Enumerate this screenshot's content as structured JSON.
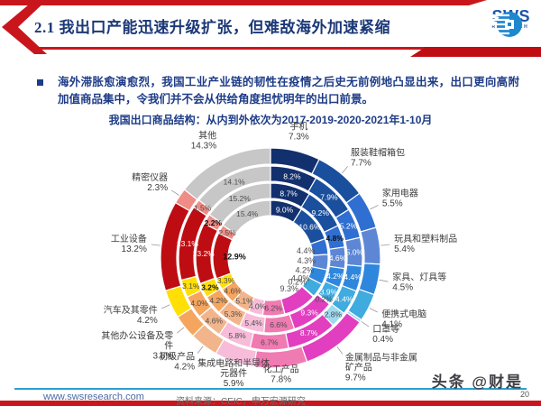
{
  "header": {
    "title": "2.1 我出口产能迅速升级扩张，但难敌海外加速紧缩",
    "logo_text": "SWS",
    "logo_subtext": "RESEARCH"
  },
  "body": {
    "bullet_text": "海外滞胀愈演愈烈，我国工业产业链的韧性在疫情之后史无前例地凸显出来，出口更向高附加值商品集中，令我们并不会从供给角度担忧明年的出口前景。"
  },
  "chart_data": {
    "type": "donut",
    "title": "我国出口商品结构：从内到外依次为2017-2019-2020-2021年1-10月",
    "unit": "%",
    "rings_inner_to_outer": [
      "2017",
      "2019",
      "2020",
      "2021年1-10月"
    ],
    "legend_position": "labels-around-ring",
    "categories": [
      {
        "name": "手机",
        "label_lines": [
          "手机"
        ],
        "pct_label": "7.3%",
        "color": "#13306e",
        "text": "light",
        "values": {
          "2017": 9.0,
          "2019": 8.7,
          "2020": 8.2,
          "2021": 7.3
        },
        "ring_labels": [
          {
            "year": "2020",
            "text": "8.2%",
            "style": "light",
            "pos": "ring"
          },
          {
            "year": "2019",
            "text": "8.7%",
            "style": "light",
            "pos": "ring"
          },
          {
            "year": "2017",
            "text": "9.0%",
            "style": "light",
            "pos": "ring"
          }
        ]
      },
      {
        "name": "服装鞋帽箱包",
        "label_lines": [
          "服装鞋帽箱包"
        ],
        "pct_label": "7.7%",
        "color": "#1a4f9d",
        "text": "light",
        "values": {
          "2017": 10.6,
          "2019": 9.2,
          "2020": 7.9,
          "2021": 7.7
        },
        "ring_labels": [
          {
            "year": "2020",
            "text": "7.9%",
            "style": "light",
            "pos": "ring"
          },
          {
            "year": "2019",
            "text": "9.2%",
            "style": "light",
            "pos": "ring"
          },
          {
            "year": "2017",
            "text": "10.6%",
            "style": "light",
            "pos": "ring"
          }
        ]
      },
      {
        "name": "家用电器",
        "label_lines": [
          "家用电器"
        ],
        "pct_label": "5.5%",
        "color": "#2f6fd2",
        "text": "light",
        "values": {
          "2017": 4.4,
          "2019": 4.8,
          "2020": 5.2,
          "2021": 5.5
        },
        "ring_labels": [
          {
            "year": "2020",
            "text": "5.2%",
            "style": "light",
            "pos": "ring"
          },
          {
            "year": "2019",
            "text": "4.8%",
            "style": "bold-dark",
            "pos": "ring"
          },
          {
            "year": "2017",
            "text": "4.4%",
            "style": "dark",
            "pos": "center"
          }
        ]
      },
      {
        "name": "玩具和塑料制品",
        "label_lines": [
          "玩具和塑料制品"
        ],
        "pct_label": "5.4%",
        "color": "#5d87d5",
        "text": "light",
        "values": {
          "2017": 4.3,
          "2019": 4.6,
          "2020": 5.0,
          "2021": 5.4
        },
        "ring_labels": [
          {
            "year": "2020",
            "text": "5.0%",
            "style": "light",
            "pos": "ring"
          },
          {
            "year": "2019",
            "text": "4.6%",
            "style": "light",
            "pos": "ring"
          },
          {
            "year": "2017",
            "text": "4.3%",
            "style": "dark",
            "pos": "center"
          }
        ]
      },
      {
        "name": "家具、灯具等",
        "label_lines": [
          "家具、灯具等"
        ],
        "pct_label": "4.5%",
        "color": "#2f87dd",
        "text": "light",
        "values": {
          "2017": 4.2,
          "2019": 4.2,
          "2020": 4.4,
          "2021": 4.5
        },
        "ring_labels": [
          {
            "year": "2020",
            "text": "4.4%",
            "style": "light",
            "pos": "ring"
          },
          {
            "year": "2019",
            "text": "4.2%",
            "style": "light",
            "pos": "ring"
          },
          {
            "year": "2017",
            "text": "4.2%",
            "style": "dark",
            "pos": "center"
          }
        ]
      },
      {
        "name": "便携式电脑",
        "label_lines": [
          "便携式电脑"
        ],
        "pct_label": "4.1%",
        "color": "#3fabdf",
        "text": "light",
        "values": {
          "2017": 4.0,
          "2019": 3.9,
          "2020": 4.4,
          "2021": 4.1
        },
        "ring_labels": [
          {
            "year": "2020",
            "text": "4.4%",
            "style": "light",
            "pos": "ring"
          },
          {
            "year": "2019",
            "text": "3.9%",
            "style": "light",
            "pos": "ring"
          },
          {
            "year": "2017",
            "text": "4.0%",
            "style": "dark",
            "pos": "center"
          }
        ]
      },
      {
        "name": "口罩等",
        "label_lines": [
          "口罩等"
        ],
        "pct_label": "0.4%",
        "color": "#9fd9ef",
        "text": "dark",
        "values": {
          "2017": 0.2,
          "2019": 0.2,
          "2020": 2.8,
          "2021": 0.4
        },
        "ring_labels": [
          {
            "year": "2020",
            "text": "2.8%",
            "style": "dark",
            "pos": "ring"
          },
          {
            "year": "2019",
            "text": "0.2%",
            "style": "dark",
            "pos": "ring"
          },
          {
            "year": "2017",
            "text": "0.2%",
            "style": "dark",
            "pos": "center"
          }
        ]
      },
      {
        "name": "金属制品与非金属矿产品",
        "label_lines": [
          "金属制品与非金属",
          "矿产品"
        ],
        "pct_label": "9.7%",
        "color": "#e13ec0",
        "text": "light",
        "values": {
          "2017": 9.3,
          "2019": 9.3,
          "2020": 8.7,
          "2021": 9.7
        },
        "ring_labels": [
          {
            "year": "2020",
            "text": "8.7%",
            "style": "light",
            "pos": "ring"
          },
          {
            "year": "2019",
            "text": "9.3%",
            "style": "light",
            "pos": "ring"
          },
          {
            "year": "2017",
            "text": "9.3%",
            "style": "dark",
            "pos": "center"
          }
        ]
      },
      {
        "name": "化工产品",
        "label_lines": [
          "化工产品"
        ],
        "pct_label": "7.8%",
        "color": "#f07ab2",
        "text": "dark",
        "values": {
          "2017": 6.2,
          "2019": 6.6,
          "2020": 6.7,
          "2021": 7.8
        },
        "ring_labels": [
          {
            "year": "2020",
            "text": "6.7%",
            "style": "dark",
            "pos": "ring"
          },
          {
            "year": "2019",
            "text": "6.6%",
            "style": "dark",
            "pos": "ring"
          },
          {
            "year": "2017",
            "text": "6.2%",
            "style": "dark",
            "pos": "ring"
          }
        ]
      },
      {
        "name": "集成电路和半导体元器件",
        "label_lines": [
          "集成电路和半导体",
          "元器件"
        ],
        "pct_label": "5.9%",
        "color": "#f6bcd9",
        "text": "dark",
        "values": {
          "2017": 4.0,
          "2019": 5.4,
          "2020": 5.8,
          "2021": 5.9
        },
        "ring_labels": [
          {
            "year": "2020",
            "text": "5.8%",
            "style": "dark",
            "pos": "ring"
          },
          {
            "year": "2019",
            "text": "5.4%",
            "style": "dark",
            "pos": "ring"
          },
          {
            "year": "2017",
            "text": "4.0%",
            "style": "dark",
            "pos": "ring"
          }
        ]
      },
      {
        "name": "初级产品",
        "label_lines": [
          "初级产品"
        ],
        "pct_label": "4.2%",
        "color": "#f2b58b",
        "text": "dark",
        "values": {
          "2017": 5.1,
          "2019": 5.3,
          "2020": 4.6,
          "2021": 4.2
        },
        "ring_labels": [
          {
            "year": "2020",
            "text": "4.6%",
            "style": "dark",
            "pos": "ring"
          },
          {
            "year": "2019",
            "text": "5.3%",
            "style": "dark",
            "pos": "ring"
          },
          {
            "year": "2017",
            "text": "5.1%",
            "style": "dark",
            "pos": "ring"
          }
        ]
      },
      {
        "name": "其他办公设备及零件",
        "label_lines": [
          "其他办公设备及零",
          "件"
        ],
        "pct_label": "3.5%",
        "color": "#f5a55e",
        "text": "dark",
        "values": {
          "2017": 4.6,
          "2019": 4.2,
          "2020": 4.0,
          "2021": 3.5
        },
        "ring_labels": [
          {
            "year": "2020",
            "text": "4.0%",
            "style": "dark",
            "pos": "ring"
          },
          {
            "year": "2019",
            "text": "4.2%",
            "style": "dark",
            "pos": "ring"
          },
          {
            "year": "2017",
            "text": "4.6%",
            "style": "dark",
            "pos": "ring"
          }
        ]
      },
      {
        "name": "汽车及其零件",
        "label_lines": [
          "汽车及其零件"
        ],
        "pct_label": "4.2%",
        "color": "#ffdf06",
        "text": "dark",
        "values": {
          "2017": 3.3,
          "2019": 3.2,
          "2020": 3.1,
          "2021": 4.2
        },
        "ring_labels": [
          {
            "year": "2020",
            "text": "3.1%",
            "style": "dark",
            "pos": "ring"
          },
          {
            "year": "2019",
            "text": "3.2%",
            "style": "bold-dark",
            "pos": "ring"
          },
          {
            "year": "2017",
            "text": "3.3%",
            "style": "dark",
            "pos": "ring"
          }
        ]
      },
      {
        "name": "工业设备",
        "label_lines": [
          "工业设备"
        ],
        "pct_label": "13.2%",
        "color": "#bd0d12",
        "text": "light",
        "values": {
          "2017": 12.9,
          "2019": 13.2,
          "2020": 13.1,
          "2021": 13.2
        },
        "ring_labels": [
          {
            "year": "2020",
            "text": "13.1%",
            "style": "light",
            "pos": "ring"
          },
          {
            "year": "2019",
            "text": "13.2%",
            "style": "light",
            "pos": "ring"
          },
          {
            "year": "2017",
            "text": "12.9%",
            "style": "bold-dark",
            "pos": "center"
          }
        ]
      },
      {
        "name": "精密仪器",
        "label_lines": [
          "精密仪器"
        ],
        "pct_label": "2.3%",
        "color": "#ef8c85",
        "text": "dark",
        "values": {
          "2017": 2.5,
          "2019": 2.2,
          "2020": 1.5,
          "2021": 2.3
        },
        "ring_labels": [
          {
            "year": "2020",
            "text": "1.5%",
            "style": "dark",
            "pos": "ring"
          },
          {
            "year": "2019",
            "text": "2.2%",
            "style": "bold-dark",
            "pos": "ring"
          },
          {
            "year": "2017",
            "text": "2.5%",
            "style": "dark",
            "pos": "ring"
          }
        ]
      },
      {
        "name": "其他",
        "label_lines": [
          "其他"
        ],
        "pct_label": "14.3%",
        "color": "#c7c7c7",
        "text": "dark",
        "values": {
          "2017": 15.4,
          "2019": 15.2,
          "2020": 14.1,
          "2021": 14.3
        },
        "ring_labels": [
          {
            "year": "2020",
            "text": "14.1%",
            "style": "dark",
            "pos": "ring"
          },
          {
            "year": "2019",
            "text": "15.2%",
            "style": "dark",
            "pos": "ring"
          },
          {
            "year": "2017",
            "text": "15.4%",
            "style": "dark",
            "pos": "ring"
          }
        ]
      }
    ]
  },
  "footer": {
    "website": "www.swsresearch.com",
    "source": "资料来源：CEIC，申万宏源研究",
    "watermark": "头条 @财是",
    "page": "20"
  },
  "colors": {
    "accent_red": "#c9161c",
    "title_blue": "#1b3877",
    "body_blue": "#1e3c87",
    "footer_line_blue": "#2aa0d2",
    "logo_blue": "#1a55a8"
  }
}
